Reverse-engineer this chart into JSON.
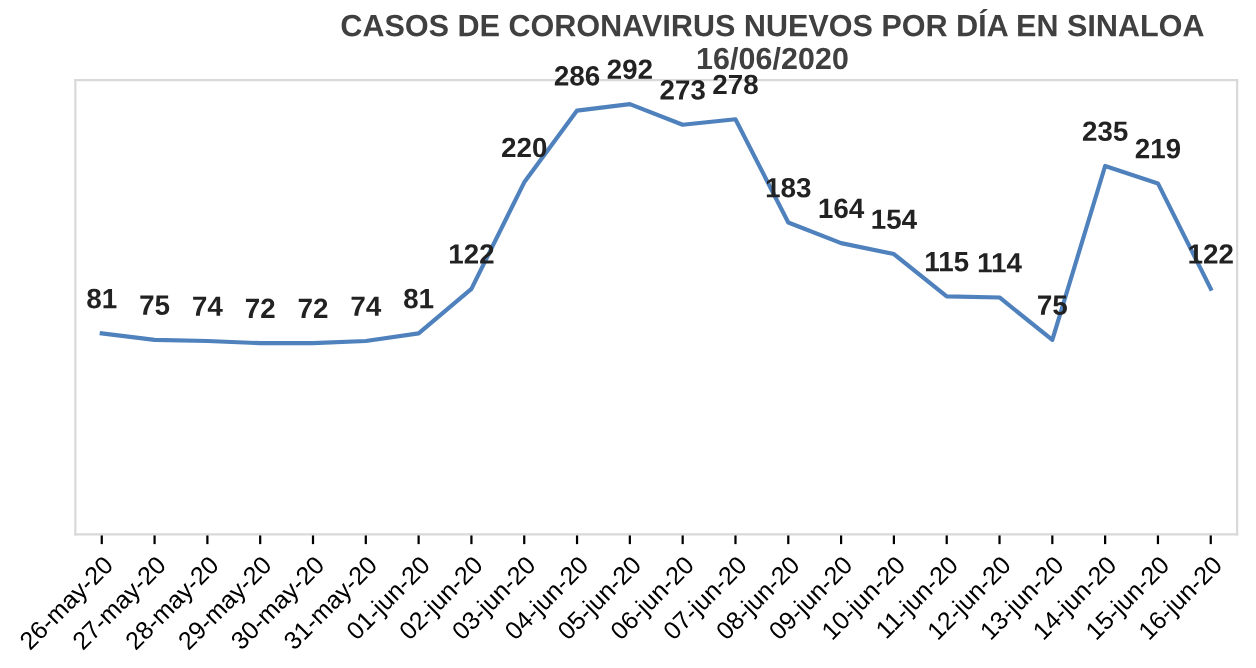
{
  "chart_data": {
    "type": "line",
    "title": "CASOS DE CORONAVIRUS NUEVOS POR DÍA EN SINALOA\n16/06/2020",
    "categories": [
      "26-may-20",
      "27-may-20",
      "28-may-20",
      "29-may-20",
      "30-may-20",
      "31-may-20",
      "01-jun-20",
      "02-jun-20",
      "03-jun-20",
      "04-jun-20",
      "05-jun-20",
      "06-jun-20",
      "07-jun-20",
      "08-jun-20",
      "09-jun-20",
      "10-jun-20",
      "11-jun-20",
      "12-jun-20",
      "13-jun-20",
      "14-jun-20",
      "15-jun-20",
      "16-jun-20"
    ],
    "series": [
      {
        "color": "#4f81bd",
        "values": [
          81,
          75,
          74,
          72,
          72,
          74,
          81,
          122,
          220,
          286,
          292,
          273,
          278,
          183,
          164,
          154,
          115,
          114,
          75,
          235,
          219,
          122
        ]
      }
    ],
    "data_labels": true,
    "grid": false,
    "legend": false,
    "marker": "none",
    "line_style": "solid"
  }
}
